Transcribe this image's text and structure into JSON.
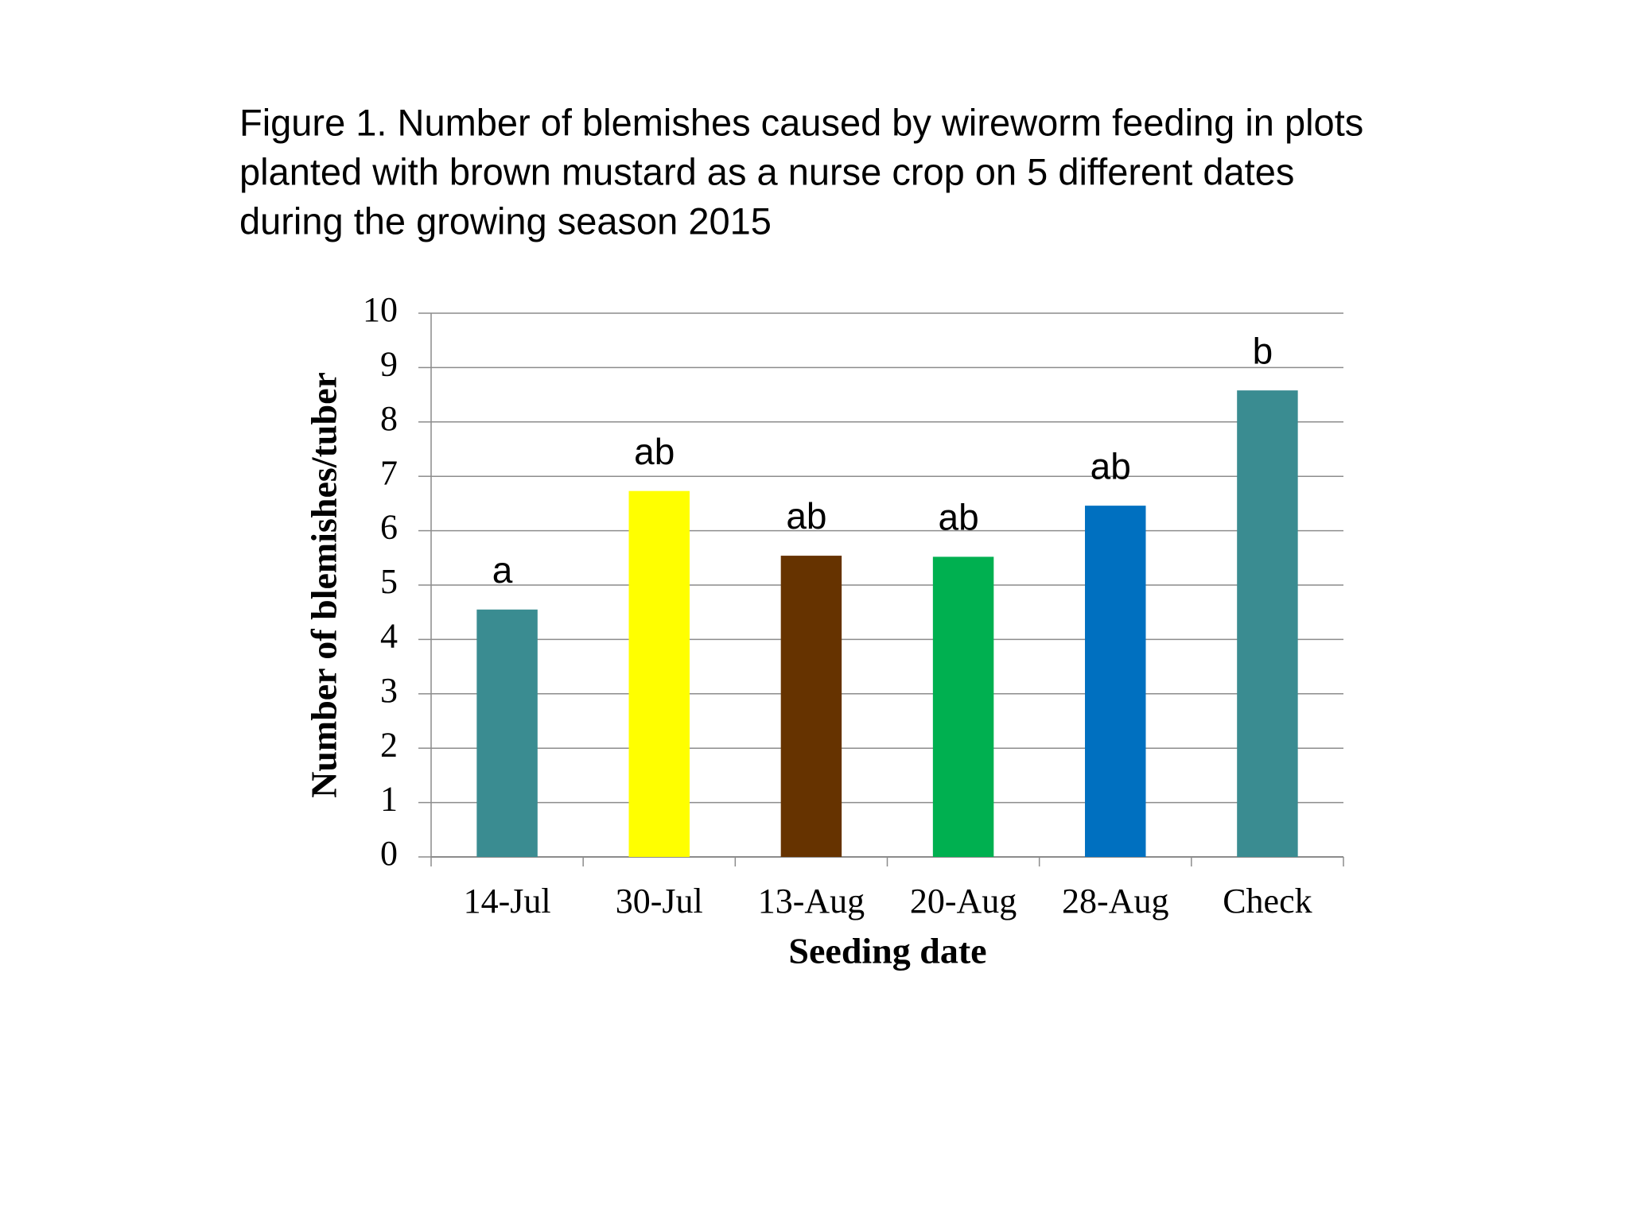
{
  "chart_data": {
    "type": "bar",
    "title": [
      "Figure 1. Number of blemishes caused by wireworm feeding in plots",
      "planted with brown mustard as a nurse crop on 5 different dates",
      "during the growing season 2015"
    ],
    "x_label": "Seeding date",
    "y_label": "Number of blemishes/tuber",
    "categories": [
      "14-Jul",
      "30-Jul",
      "13-Aug",
      "20-Aug",
      "28-Aug",
      "Check"
    ],
    "values": [
      4.55,
      6.73,
      5.54,
      5.52,
      6.46,
      8.58
    ],
    "colors": [
      "#3a8c91",
      "#ffff00",
      "#663300",
      "#00b050",
      "#0070c0",
      "#3a8c91"
    ],
    "bar_annotations": [
      "a",
      "ab",
      "ab",
      "ab",
      "ab",
      "b"
    ],
    "ylim": [
      0,
      10
    ],
    "yticks": [
      0,
      1,
      2,
      3,
      4,
      5,
      6,
      7,
      8,
      9,
      10
    ],
    "grid": true
  }
}
